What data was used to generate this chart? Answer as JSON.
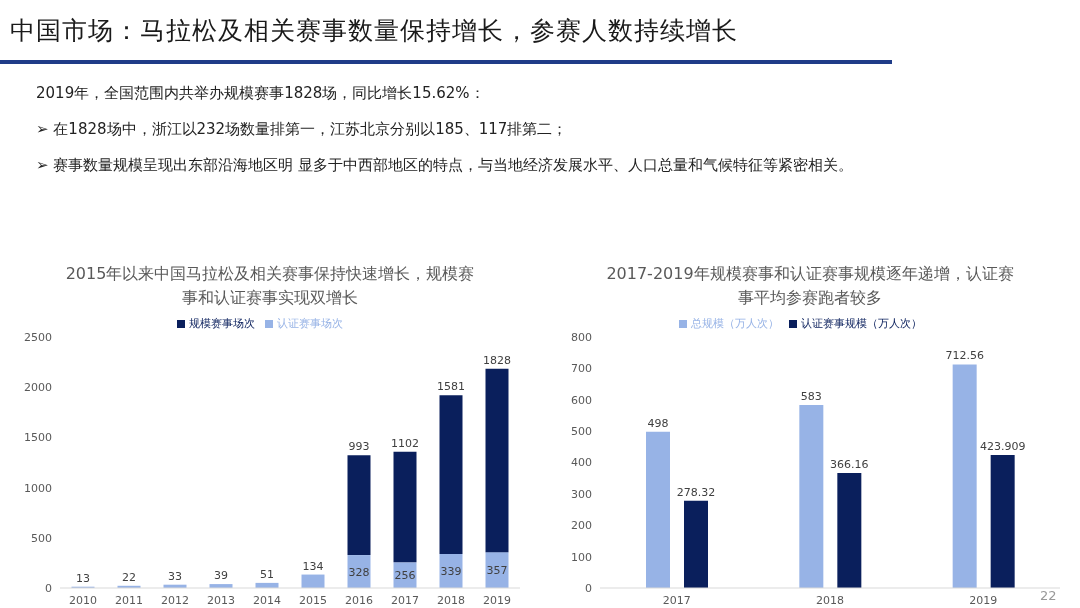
{
  "chart_data": [
    {
      "type": "other",
      "title": "中国市场：马拉松及相关赛事数量保持增长，参赛人数持续增长",
      "annotations": [
        "2019年，全国范围内共举办规模赛事1828场，同比增长15.62%：",
        "➢  在1828场中，浙江以232场数量排第一，江苏北京分别以185、117排第二；",
        "➢  赛事数量规模呈现出东部沿海地区明 显多于中西部地区的特点，与当地经济发展水平、人口总量和气候特征等紧密相关。",
        "22"
      ]
    },
    {
      "type": "bar",
      "title": "2015年以来中国马拉松及相关赛事保持快速增长，规模赛事和认证赛事实现双增长",
      "categories": [
        "2010",
        "2011",
        "2012",
        "2013",
        "2014",
        "2015",
        "2016",
        "2017",
        "2018",
        "2019"
      ],
      "stacked": true,
      "series": [
        {
          "name": "认证赛事场次",
          "color": "#97b3e6",
          "values": [
            13,
            22,
            33,
            39,
            51,
            134,
            328,
            256,
            339,
            357
          ]
        },
        {
          "name": "规模赛事场次",
          "color": "#0a1f5c",
          "values": [
            null,
            null,
            null,
            null,
            null,
            null,
            993,
            1102,
            1581,
            1828
          ]
        }
      ],
      "ylim": [
        0,
        2500
      ],
      "yticks": [
        0,
        500,
        1000,
        1500,
        2000,
        2500
      ],
      "grid": false,
      "legend": "top",
      "data_labels": true
    },
    {
      "type": "bar",
      "title": "2017-2019年规模赛事和认证赛事规模逐年递增，认证赛事平均参赛跑者较多",
      "categories": [
        "2017",
        "2018",
        "2019"
      ],
      "series": [
        {
          "name": "总规模（万人次）",
          "color": "#97b3e6",
          "values": [
            498,
            583,
            712.56
          ]
        },
        {
          "name": "认证赛事规模（万人次）",
          "color": "#0a1f5c",
          "values": [
            278.32,
            366.16,
            423.909
          ]
        }
      ],
      "ylim": [
        0,
        800
      ],
      "yticks": [
        0,
        100,
        200,
        300,
        400,
        500,
        600,
        700,
        800
      ],
      "grid": false,
      "legend": "top",
      "data_labels": true
    }
  ]
}
